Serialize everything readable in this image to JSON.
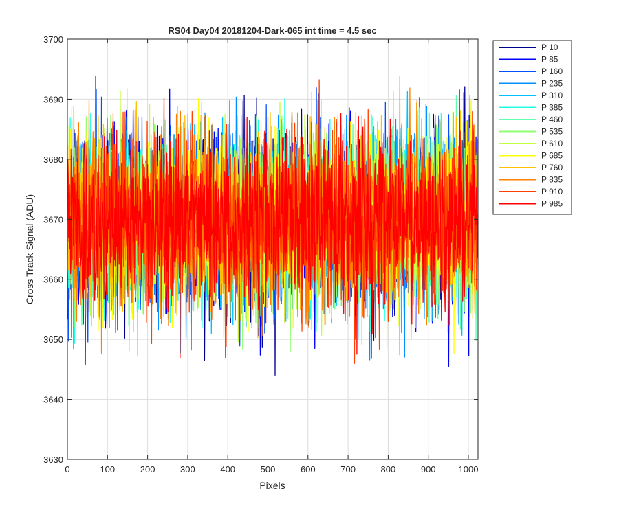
{
  "chart_data": {
    "type": "line",
    "title": "RS04 Day04 20181204-Dark-065 int time = 4.5 sec",
    "xlabel": "Pixels",
    "ylabel": "Cross Track Signal (ADU)",
    "xlim": [
      0,
      1024
    ],
    "ylim": [
      3630,
      3700
    ],
    "xticks": [
      0,
      100,
      200,
      300,
      400,
      500,
      600,
      700,
      800,
      900,
      1000
    ],
    "yticks": [
      3630,
      3640,
      3650,
      3660,
      3670,
      3680,
      3690,
      3700
    ],
    "grid": true,
    "legend_position": "outside-top-right",
    "noise_model": {
      "mean": 3670,
      "std": 7,
      "min_observed": 3639,
      "max_observed": 3697,
      "n_points": 1024
    },
    "series": [
      {
        "name": "P 10",
        "color": "#00008f"
      },
      {
        "name": "P 85",
        "color": "#0000ff"
      },
      {
        "name": "P 160",
        "color": "#0050ff"
      },
      {
        "name": "P 235",
        "color": "#0090ff"
      },
      {
        "name": "P 310",
        "color": "#00c0ff"
      },
      {
        "name": "P 385",
        "color": "#20ffe0"
      },
      {
        "name": "P 460",
        "color": "#60ffb0"
      },
      {
        "name": "P 535",
        "color": "#90ff70"
      },
      {
        "name": "P 610",
        "color": "#c0ff40"
      },
      {
        "name": "P 685",
        "color": "#ffff00"
      },
      {
        "name": "P 760",
        "color": "#ffc000"
      },
      {
        "name": "P 835",
        "color": "#ff8000"
      },
      {
        "name": "P 910",
        "color": "#ff4000"
      },
      {
        "name": "P 985",
        "color": "#ff0000"
      }
    ]
  }
}
